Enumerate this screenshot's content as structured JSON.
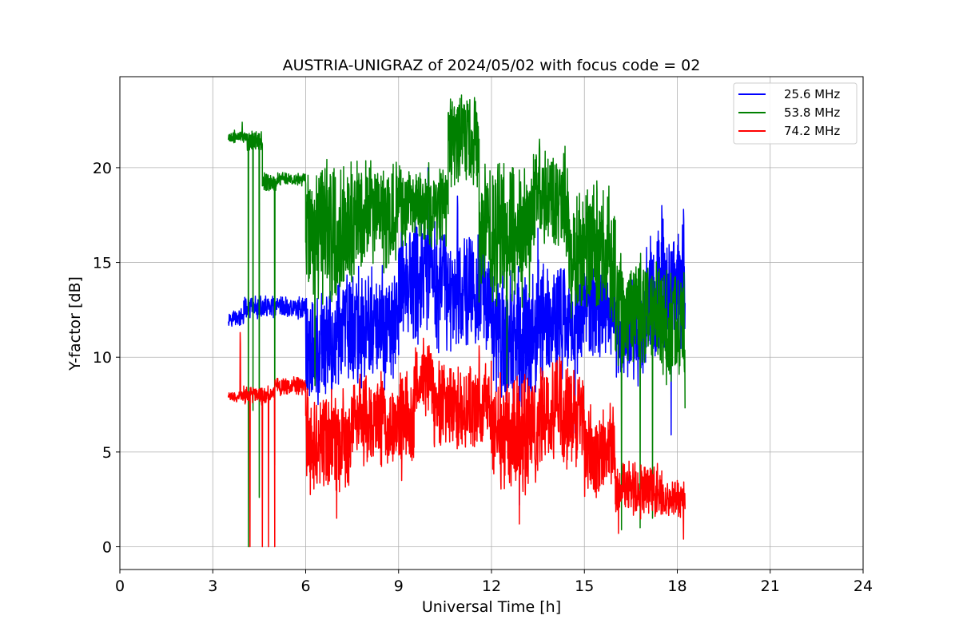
{
  "chart_data": {
    "type": "line",
    "title": "AUSTRIA-UNIGRAZ of 2024/05/02 with focus code = 02",
    "xlabel": "Universal Time [h]",
    "ylabel": "Y-factor [dB]",
    "xlim": [
      0,
      24
    ],
    "ylim": [
      -1.2,
      24.8
    ],
    "xticks": [
      "0",
      "3",
      "6",
      "9",
      "12",
      "15",
      "18",
      "21",
      "24"
    ],
    "yticks": [
      "0",
      "5",
      "10",
      "15",
      "20"
    ],
    "grid": true,
    "legend_position": "top-right",
    "series": [
      {
        "name": "25.6 MHz",
        "color": "#0000ff",
        "segments": [
          {
            "x": [
              3.5,
              4.0
            ],
            "base": 12.1,
            "amp": 0.35
          },
          {
            "x": [
              4.0,
              6.0
            ],
            "base": 12.6,
            "amp": 0.5
          },
          {
            "x": [
              6.0,
              7.0
            ],
            "base": 10.5,
            "amp": 2.5
          },
          {
            "x": [
              7.0,
              9.0
            ],
            "base": 11.5,
            "amp": 2.5
          },
          {
            "x": [
              9.0,
              10.5
            ],
            "base": 14.0,
            "amp": 3.0
          },
          {
            "x": [
              10.5,
              12.0
            ],
            "base": 13.5,
            "amp": 2.5
          },
          {
            "x": [
              12.0,
              13.5
            ],
            "base": 11.0,
            "amp": 3.0
          },
          {
            "x": [
              13.5,
              15.0
            ],
            "base": 12.0,
            "amp": 2.5
          },
          {
            "x": [
              15.0,
              16.0
            ],
            "base": 12.5,
            "amp": 2.0
          },
          {
            "x": [
              16.0,
              17.0
            ],
            "base": 11.5,
            "amp": 2.5
          },
          {
            "x": [
              17.0,
              18.25
            ],
            "base": 13.5,
            "amp": 3.0
          }
        ],
        "peaks": [
          [
            9.95,
            20.0
          ],
          [
            11.2,
            16.2
          ],
          [
            17.5,
            18.0
          ],
          [
            18.2,
            17.8
          ],
          [
            10.9,
            18.5
          ],
          [
            13.5,
            16.8
          ]
        ],
        "dips": [
          [
            12.9,
            2.2
          ],
          [
            14.7,
            6.0
          ],
          [
            17.8,
            5.9
          ],
          [
            6.4,
            7.5
          ]
        ]
      },
      {
        "name": "53.8 MHz",
        "color": "#008000",
        "segments": [
          {
            "x": [
              3.5,
              4.1
            ],
            "base": 21.6,
            "amp": 0.3
          },
          {
            "x": [
              4.1,
              4.6
            ],
            "base": 21.4,
            "amp": 0.5
          },
          {
            "x": [
              4.6,
              5.1
            ],
            "base": 19.2,
            "amp": 0.4
          },
          {
            "x": [
              5.1,
              6.0
            ],
            "base": 19.4,
            "amp": 0.3
          },
          {
            "x": [
              6.0,
              7.5
            ],
            "base": 16.5,
            "amp": 3.0
          },
          {
            "x": [
              7.5,
              9.0
            ],
            "base": 17.5,
            "amp": 2.5
          },
          {
            "x": [
              9.0,
              10.6
            ],
            "base": 18.0,
            "amp": 1.8
          },
          {
            "x": [
              10.6,
              11.6
            ],
            "base": 21.5,
            "amp": 2.0
          },
          {
            "x": [
              11.6,
              13.3
            ],
            "base": 16.5,
            "amp": 3.0
          },
          {
            "x": [
              13.3,
              14.5
            ],
            "base": 18.2,
            "amp": 2.2
          },
          {
            "x": [
              14.5,
              16.0
            ],
            "base": 15.5,
            "amp": 2.8
          },
          {
            "x": [
              16.0,
              17.5
            ],
            "base": 12.5,
            "amp": 2.5
          },
          {
            "x": [
              17.5,
              18.25
            ],
            "base": 11.5,
            "amp": 2.5
          }
        ],
        "peaks": [
          [
            11.45,
            23.7
          ],
          [
            10.95,
            23.3
          ],
          [
            13.55,
            21.5
          ],
          [
            3.95,
            22.4
          ],
          [
            7.8,
            19.7
          ],
          [
            15.4,
            19.3
          ]
        ],
        "dips": [
          [
            4.15,
            0.0
          ],
          [
            4.3,
            7.2
          ],
          [
            4.5,
            2.6
          ],
          [
            5.0,
            4.3
          ],
          [
            16.2,
            0.9
          ],
          [
            16.8,
            1.0
          ],
          [
            17.2,
            1.5
          ],
          [
            18.25,
            7.3
          ],
          [
            6.3,
            8.5
          ],
          [
            12.5,
            6.5
          ]
        ]
      },
      {
        "name": "74.2 MHz",
        "color": "#ff0000",
        "segments": [
          {
            "x": [
              3.5,
              4.0
            ],
            "base": 7.9,
            "amp": 0.25
          },
          {
            "x": [
              4.0,
              5.0
            ],
            "base": 8.0,
            "amp": 0.4
          },
          {
            "x": [
              5.0,
              6.0
            ],
            "base": 8.5,
            "amp": 0.4
          },
          {
            "x": [
              6.0,
              7.5
            ],
            "base": 5.5,
            "amp": 2.2
          },
          {
            "x": [
              7.5,
              9.5
            ],
            "base": 6.8,
            "amp": 2.0
          },
          {
            "x": [
              9.5,
              10.1
            ],
            "base": 8.8,
            "amp": 1.5
          },
          {
            "x": [
              10.1,
              12.0
            ],
            "base": 7.5,
            "amp": 2.0
          },
          {
            "x": [
              12.0,
              13.5
            ],
            "base": 6.0,
            "amp": 2.5
          },
          {
            "x": [
              13.5,
              15.0
            ],
            "base": 7.0,
            "amp": 2.2
          },
          {
            "x": [
              15.0,
              16.0
            ],
            "base": 5.0,
            "amp": 2.0
          },
          {
            "x": [
              16.0,
              17.5
            ],
            "base": 3.0,
            "amp": 1.2
          },
          {
            "x": [
              17.5,
              18.25
            ],
            "base": 2.5,
            "amp": 0.8
          }
        ],
        "peaks": [
          [
            3.88,
            11.3
          ],
          [
            9.8,
            11.0
          ],
          [
            11.6,
            10.6
          ],
          [
            14.2,
            10.0
          ]
        ],
        "dips": [
          [
            4.2,
            0.0
          ],
          [
            4.6,
            0.0
          ],
          [
            4.8,
            0.0
          ],
          [
            5.0,
            0.0
          ],
          [
            7.0,
            1.5
          ],
          [
            12.9,
            1.2
          ],
          [
            16.1,
            0.7
          ],
          [
            18.2,
            0.4
          ],
          [
            9.1,
            3.5
          ]
        ]
      }
    ]
  }
}
